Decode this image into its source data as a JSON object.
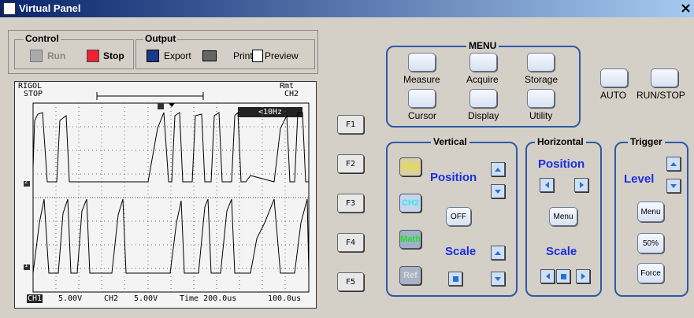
{
  "title_bar": {
    "title": "Virtual Panel"
  },
  "toolbar": {
    "control": {
      "label": "Control",
      "run": "Run",
      "stop": "Stop"
    },
    "output": {
      "label": "Output",
      "export": "Export",
      "print": "Print",
      "preview": "Preview"
    }
  },
  "scope": {
    "brand": "RIGOL",
    "state": "STOP",
    "remote": "Rmt",
    "trigger_source": "CH2",
    "frequency": "<10Hz",
    "ch1_label": "CH1",
    "ch1_scale": "5.00V",
    "ch2_label": "CH2",
    "ch2_scale": "5.00V",
    "time_base": "Time 200.0us",
    "trigger_offset": "100.0us",
    "marker_ch1": "1",
    "marker_ch2": "2"
  },
  "soft_keys": [
    "F1",
    "F2",
    "F3",
    "F4",
    "F5"
  ],
  "menu": {
    "title": "MENU",
    "buttons": [
      "Measure",
      "Acquire",
      "Storage",
      "Cursor",
      "Display",
      "Utility"
    ]
  },
  "run_controls": [
    "AUTO",
    "RUN/STOP"
  ],
  "vertical": {
    "title": "Vertical",
    "channels": [
      "CH1",
      "CH2",
      "Math",
      "Ref"
    ],
    "position": "Position",
    "off": "OFF",
    "scale": "Scale"
  },
  "horizontal": {
    "title": "Horizontal",
    "position": "Position",
    "menu": "Menu",
    "scale": "Scale"
  },
  "trigger": {
    "title": "Trigger",
    "level": "Level",
    "menu": "Menu",
    "fifty": "50%",
    "force": "Force"
  }
}
